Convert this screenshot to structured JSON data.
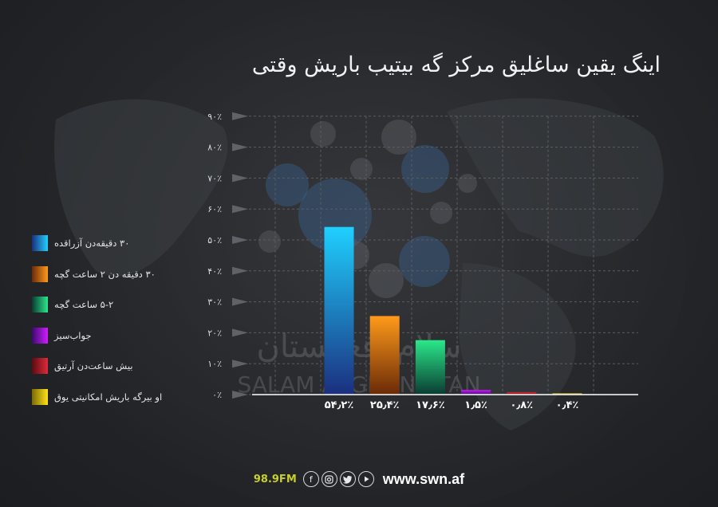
{
  "title": "اینگ یقین ساغلیق مرکز گه بیتیب باریش وقتی",
  "colors": {
    "background": "#26282b",
    "axis": "#ffffff",
    "grid": "#5a5d62",
    "text": "#f2f2f2"
  },
  "watermark": {
    "line1": "سلام افغانستان",
    "line2": "SALAM AFGHANISTAN"
  },
  "chart_data": {
    "type": "bar",
    "categories": [
      "۳۰ دقیقه‌دن آزراقده",
      "۳۰ دقیقه دن ۲ ساعت گچه",
      "۵-۲ ساعت گچه",
      "جواب‌سیز",
      "بیش ساعت‌دن آرتیق",
      "او بیرگه باریش امکانیتی یوق"
    ],
    "values": [
      54.2,
      25.4,
      17.6,
      1.5,
      0.8,
      0.4
    ],
    "value_labels": [
      "۵۴٫۲٪",
      "۲۵٫۴٪",
      "۱۷٫۶٪",
      "۱٫۵٪",
      "۰٫۸٪",
      "۰٫۴٪"
    ],
    "colors": [
      [
        "#1fd0ff",
        "#1b2f7e"
      ],
      [
        "#ff9a1a",
        "#6a2a08"
      ],
      [
        "#2be88a",
        "#0a3b32"
      ],
      [
        "#d01cff",
        "#3a0a6e"
      ],
      [
        "#e02a3a",
        "#5a0b12"
      ],
      [
        "#ffe21a",
        "#7a6a04"
      ]
    ],
    "yticks": [
      0,
      10,
      20,
      30,
      40,
      50,
      60,
      70,
      80,
      90
    ],
    "ytick_labels": [
      "۰٪",
      "۱۰٪",
      "۲۰٪",
      "۳۰٪",
      "۴۰٪",
      "۵۰٪",
      "۶۰٪",
      "۷۰٪",
      "۸۰٪",
      "۹۰٪"
    ],
    "ylim": [
      0,
      90
    ],
    "grid": true,
    "legend_position": "left"
  },
  "legend": {
    "items": [
      {
        "label": "۳۰ دقیقه‌دن آزراقده"
      },
      {
        "label": "۳۰ دقیقه دن ۲ ساعت گچه"
      },
      {
        "label": "۵-۲ ساعت گچه"
      },
      {
        "label": "جواب‌سیز"
      },
      {
        "label": "بیش ساعت‌دن آرتیق"
      },
      {
        "label": "او بیرگه باریش امکانیتی یوق"
      }
    ]
  },
  "footer": {
    "frequency": "98.9FM",
    "social_icons": [
      "facebook-icon",
      "instagram-icon",
      "twitter-icon",
      "youtube-icon"
    ],
    "website": "www.swn.af"
  }
}
